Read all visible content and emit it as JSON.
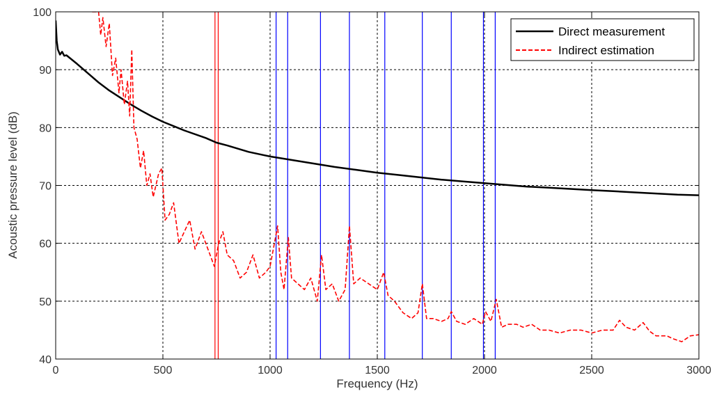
{
  "chart_data": {
    "type": "line",
    "title": "",
    "xlabel": "Frequency (Hz)",
    "ylabel": "Acoustic pressure level (dB)",
    "xlim": [
      0,
      3000
    ],
    "ylim": [
      40,
      100
    ],
    "xticks": [
      0,
      500,
      1000,
      1500,
      2000,
      2500,
      3000
    ],
    "yticks": [
      40,
      50,
      60,
      70,
      80,
      90,
      100
    ],
    "x_tick_labels": [
      "0",
      "500",
      "1000",
      "1500",
      "2000",
      "2500",
      "3000"
    ],
    "y_tick_labels": [
      "40",
      "50",
      "60",
      "70",
      "80",
      "90",
      "100"
    ],
    "grid": true,
    "legend_position": "top-right",
    "series": [
      {
        "name": "Direct measurement",
        "color": "#000000",
        "style": "solid",
        "x": [
          0,
          5,
          10,
          20,
          30,
          40,
          50,
          100,
          150,
          200,
          250,
          300,
          350,
          400,
          450,
          500,
          600,
          700,
          750,
          800,
          900,
          1000,
          1100,
          1200,
          1300,
          1400,
          1500,
          1600,
          1700,
          1800,
          1900,
          2000,
          2100,
          2200,
          2300,
          2400,
          2500,
          2600,
          2700,
          2800,
          2900,
          3000
        ],
        "y": [
          98.5,
          95.0,
          93.5,
          92.6,
          93.1,
          92.4,
          92.5,
          91.0,
          89.4,
          87.8,
          86.4,
          85.2,
          84.0,
          82.9,
          81.9,
          81.0,
          79.5,
          78.2,
          77.4,
          76.9,
          75.8,
          75.0,
          74.4,
          73.8,
          73.2,
          72.7,
          72.2,
          71.8,
          71.4,
          71.0,
          70.7,
          70.4,
          70.1,
          69.8,
          69.6,
          69.4,
          69.2,
          69.0,
          68.8,
          68.6,
          68.4,
          68.3
        ]
      },
      {
        "name": "Indirect estimation",
        "color": "#ff0000",
        "style": "dashed",
        "x": [
          170,
          200,
          210,
          220,
          235,
          250,
          265,
          280,
          295,
          305,
          320,
          335,
          345,
          355,
          365,
          380,
          395,
          410,
          425,
          440,
          455,
          480,
          495,
          510,
          530,
          550,
          575,
          600,
          625,
          650,
          680,
          700,
          720,
          740,
          760,
          780,
          800,
          830,
          860,
          890,
          920,
          950,
          980,
          1000,
          1020,
          1035,
          1050,
          1065,
          1085,
          1100,
          1130,
          1160,
          1190,
          1220,
          1240,
          1260,
          1290,
          1320,
          1350,
          1370,
          1390,
          1420,
          1460,
          1500,
          1530,
          1550,
          1580,
          1620,
          1660,
          1690,
          1710,
          1730,
          1760,
          1800,
          1830,
          1845,
          1870,
          1910,
          1950,
          1990,
          2005,
          2030,
          2055,
          2080,
          2110,
          2150,
          2180,
          2220,
          2260,
          2300,
          2350,
          2400,
          2450,
          2500,
          2550,
          2600,
          2630,
          2660,
          2700,
          2740,
          2770,
          2800,
          2850,
          2880,
          2920,
          2960,
          3000
        ],
        "y": [
          100,
          100,
          96,
          99,
          94,
          98,
          89,
          92,
          86,
          90,
          84,
          88,
          82,
          93.5,
          80,
          78,
          73,
          76,
          70,
          72,
          68,
          72,
          73,
          64,
          65,
          67,
          60,
          62,
          64,
          59,
          62,
          60,
          58,
          56,
          60,
          62,
          58,
          57,
          54,
          55,
          58,
          54,
          55,
          56,
          60,
          63,
          55,
          52,
          61,
          54,
          53,
          52,
          54,
          50,
          58,
          52,
          53,
          50,
          52,
          63,
          53,
          54,
          53,
          52,
          55,
          51,
          50,
          48,
          47,
          48,
          53,
          47,
          47,
          46.5,
          47,
          48.2,
          46.5,
          46,
          47,
          46,
          48.2,
          46.5,
          50.3,
          45.5,
          46,
          46,
          45.5,
          46,
          45,
          45,
          44.5,
          45,
          45,
          44.5,
          45,
          45,
          46.7,
          45.5,
          45,
          46.3,
          44.8,
          44,
          44,
          43.5,
          43,
          44,
          44.2
        ]
      }
    ],
    "vertical_lines": [
      {
        "x": 743,
        "color": "#ff0000"
      },
      {
        "x": 758,
        "color": "#ff0000"
      },
      {
        "x": 1028,
        "color": "#0000ff"
      },
      {
        "x": 1082,
        "color": "#0000ff"
      },
      {
        "x": 1235,
        "color": "#0000ff"
      },
      {
        "x": 1370,
        "color": "#0000ff"
      },
      {
        "x": 1535,
        "color": "#0000ff"
      },
      {
        "x": 1710,
        "color": "#0000ff"
      },
      {
        "x": 1845,
        "color": "#0000ff"
      },
      {
        "x": 1995,
        "color": "#0000ff"
      },
      {
        "x": 2050,
        "color": "#0000ff"
      }
    ]
  }
}
